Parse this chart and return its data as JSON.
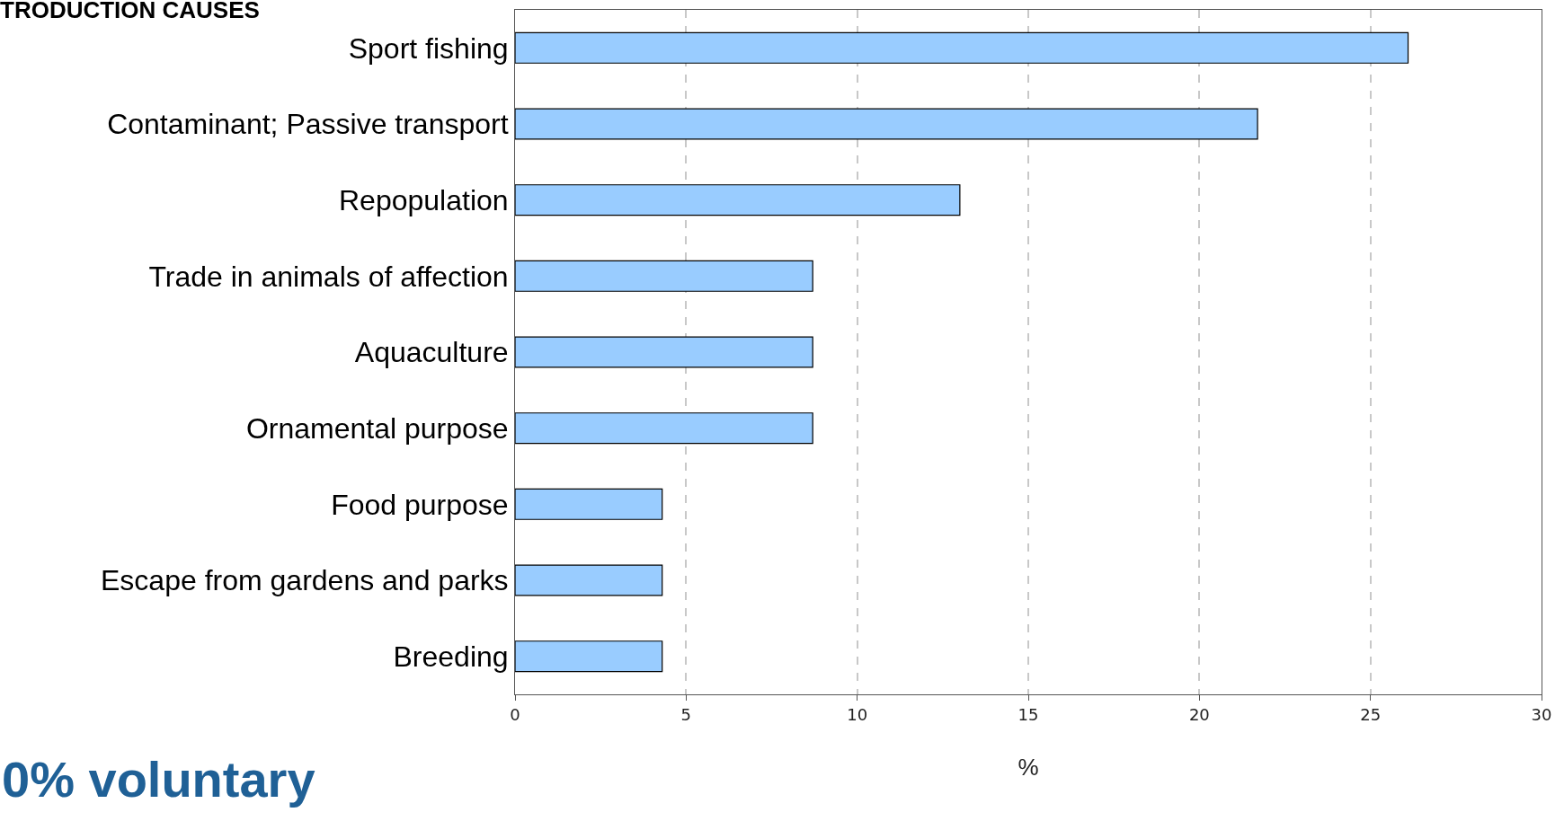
{
  "chart_data": {
    "type": "bar",
    "orientation": "horizontal",
    "title": "TRODUCTION CAUSES",
    "categories": [
      "Sport fishing",
      "Contaminant; Passive transport",
      "Repopulation",
      "Trade in animals of affection",
      "Aquaculture",
      "Ornamental purpose",
      "Food purpose",
      "Escape from gardens and parks",
      "Breeding"
    ],
    "values": [
      26.1,
      21.7,
      13.0,
      8.7,
      8.7,
      8.7,
      4.3,
      4.3,
      4.3
    ],
    "color": "#99ccff",
    "xlim": [
      0,
      30
    ],
    "xticks": [
      0,
      5,
      10,
      15,
      20,
      25,
      30
    ],
    "xlabel": "%",
    "grid": "x",
    "legend": false,
    "annotations": [
      "0% voluntary"
    ]
  }
}
